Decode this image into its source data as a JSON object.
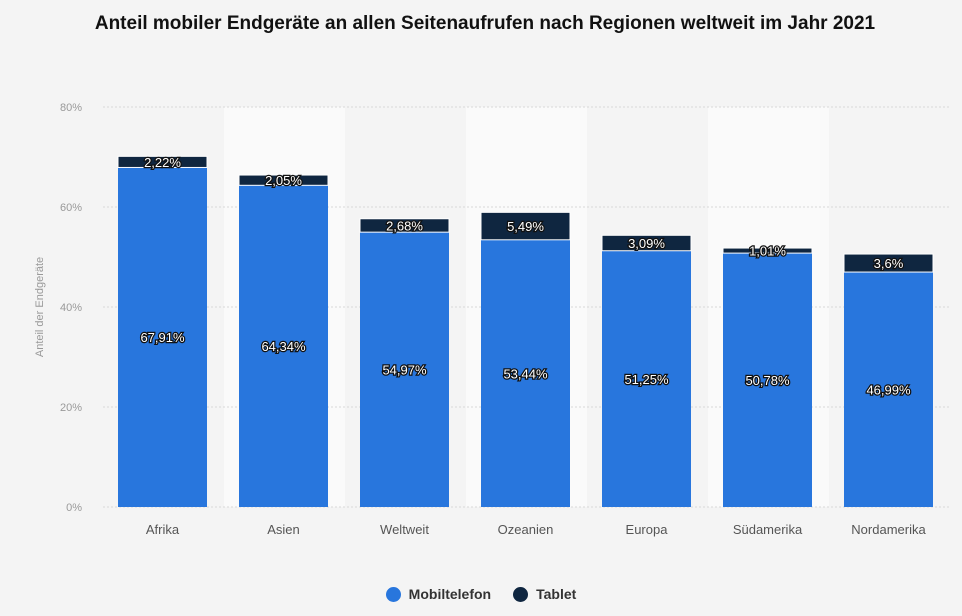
{
  "chart_data": {
    "type": "bar",
    "stacked": true,
    "title": "Anteil mobiler Endgeräte an allen Seitenaufrufen nach Regionen weltweit im Jahr 2021",
    "ylabel": "Anteil der Endgeräte",
    "xlabel": "",
    "ylim": [
      0,
      80
    ],
    "yticks": [
      "0%",
      "20%",
      "40%",
      "60%",
      "80%"
    ],
    "grid": true,
    "legend_position": "bottom",
    "categories": [
      "Afrika",
      "Asien",
      "Weltweit",
      "Ozeanien",
      "Europa",
      "Südamerika",
      "Nordamerika"
    ],
    "series": [
      {
        "name": "Mobiltelefon",
        "color": "#2876dd",
        "values": [
          67.91,
          64.34,
          54.97,
          53.44,
          51.25,
          50.78,
          46.99
        ],
        "labels": [
          "67,91%",
          "64,34%",
          "54,97%",
          "53,44%",
          "51,25%",
          "50,78%",
          "46,99%"
        ]
      },
      {
        "name": "Tablet",
        "color": "#0f2640",
        "values": [
          2.22,
          2.05,
          2.68,
          5.49,
          3.09,
          1.01,
          3.6
        ],
        "labels": [
          "2,22%",
          "2,05%",
          "2,68%",
          "5,49%",
          "3,09%",
          "1,01%",
          "3,6%"
        ]
      }
    ]
  }
}
